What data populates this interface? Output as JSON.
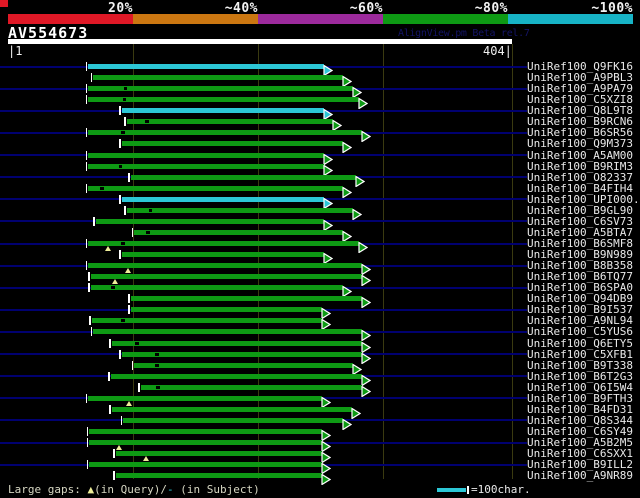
{
  "header": {
    "query_name": "AV554673",
    "watermark": "AlignView.pm Beta rel.7",
    "identity_scale": [
      {
        "label": "20%",
        "color": "#df1826"
      },
      {
        "label": "~40%",
        "color": "#cc7711"
      },
      {
        "label": "~60%",
        "color": "#9c2a9c"
      },
      {
        "label": "~80%",
        "color": "#0e9a14"
      },
      {
        "label": "~100%",
        "color": "#17b3c6"
      }
    ]
  },
  "ruler": {
    "start_label": "|1",
    "end_label": "404|",
    "start": 1,
    "end": 404,
    "ticks": [
      101,
      201,
      301,
      404
    ]
  },
  "legend": {
    "large_gaps_prefix": "Large gaps: ",
    "query_gap_symbol": "▲",
    "query_gap_text": "(in Query)/",
    "subject_gap_symbol": "-",
    "subject_gap_text": " (in Subject)",
    "swatch_label": "=100char."
  },
  "colors": {
    "background": "#000000",
    "bar_green": "#0e9a14",
    "bar_cyan": "#2cc7d6",
    "guide_navy": "#000070",
    "gridline_olive": "#3a3a10",
    "corner_red": "#df1826",
    "gap_yellow": "#eeee99",
    "label_text": "#e9e9e9"
  },
  "alignment": {
    "rows": [
      {
        "label": "UniRef100_Q9FK16",
        "color": "cyan",
        "start": 65,
        "end": 254,
        "sgaps": [],
        "qgaps": []
      },
      {
        "label": "UniRef100_A9PBL3",
        "color": "green",
        "start": 69,
        "end": 269,
        "sgaps": [],
        "qgaps": []
      },
      {
        "label": "UniRef100_A9PA79",
        "color": "green",
        "start": 65,
        "end": 277,
        "sgaps": [
          95
        ],
        "qgaps": []
      },
      {
        "label": "UniRef100_C5XZI8",
        "color": "green",
        "start": 65,
        "end": 282,
        "sgaps": [
          94
        ],
        "qgaps": []
      },
      {
        "label": "UniRef100_Q8L9T8",
        "color": "cyan",
        "start": 92,
        "end": 254,
        "sgaps": [],
        "qgaps": []
      },
      {
        "label": "UniRef100_B9RCN6",
        "color": "green",
        "start": 96,
        "end": 261,
        "sgaps": [
          112
        ],
        "qgaps": []
      },
      {
        "label": "UniRef100_B6SR56",
        "color": "green",
        "start": 65,
        "end": 284,
        "sgaps": [
          93
        ],
        "qgaps": []
      },
      {
        "label": "UniRef100_Q9M373",
        "color": "green",
        "start": 92,
        "end": 269,
        "sgaps": [],
        "qgaps": []
      },
      {
        "label": "UniRef100_A5AM00",
        "color": "green",
        "start": 65,
        "end": 254,
        "sgaps": [],
        "qgaps": []
      },
      {
        "label": "UniRef100_B9RIM3",
        "color": "green",
        "start": 65,
        "end": 254,
        "sgaps": [
          91
        ],
        "qgaps": []
      },
      {
        "label": "UniRef100_O82337",
        "color": "green",
        "start": 99,
        "end": 279,
        "sgaps": [],
        "qgaps": []
      },
      {
        "label": "UniRef100_B4FIH4",
        "color": "green",
        "start": 65,
        "end": 269,
        "sgaps": [
          76
        ],
        "qgaps": []
      },
      {
        "label": "UniRef100_UPI000..",
        "color": "cyan",
        "start": 92,
        "end": 254,
        "sgaps": [],
        "qgaps": []
      },
      {
        "label": "UniRef100_B9GL90",
        "color": "green",
        "start": 96,
        "end": 277,
        "sgaps": [
          115
        ],
        "qgaps": []
      },
      {
        "label": "UniRef100_C6SV73",
        "color": "green",
        "start": 71,
        "end": 254,
        "sgaps": [],
        "qgaps": []
      },
      {
        "label": "UniRef100_A5BTA7",
        "color": "green",
        "start": 102,
        "end": 269,
        "sgaps": [
          113
        ],
        "qgaps": []
      },
      {
        "label": "UniRef100_B6SMF8",
        "color": "green",
        "start": 65,
        "end": 282,
        "sgaps": [
          93
        ],
        "qgaps": [
          81
        ]
      },
      {
        "label": "UniRef100_B9N989",
        "color": "green",
        "start": 92,
        "end": 254,
        "sgaps": [],
        "qgaps": []
      },
      {
        "label": "UniRef100_B8B358",
        "color": "green",
        "start": 65,
        "end": 284,
        "sgaps": [],
        "qgaps": [
          97
        ]
      },
      {
        "label": "UniRef100_B6TQ77",
        "color": "green",
        "start": 67,
        "end": 284,
        "sgaps": [],
        "qgaps": [
          87
        ]
      },
      {
        "label": "UniRef100_B6SPA0",
        "color": "green",
        "start": 67,
        "end": 269,
        "sgaps": [
          85
        ],
        "qgaps": []
      },
      {
        "label": "UniRef100_Q94DB9",
        "color": "green",
        "start": 99,
        "end": 284,
        "sgaps": [],
        "qgaps": []
      },
      {
        "label": "UniRef100_B9I537",
        "color": "green",
        "start": 99,
        "end": 252,
        "sgaps": [],
        "qgaps": []
      },
      {
        "label": "UniRef100_A9NL94",
        "color": "green",
        "start": 68,
        "end": 252,
        "sgaps": [
          93
        ],
        "qgaps": []
      },
      {
        "label": "UniRef100_C5YUS6",
        "color": "green",
        "start": 69,
        "end": 284,
        "sgaps": [],
        "qgaps": []
      },
      {
        "label": "UniRef100_Q6ETY5",
        "color": "green",
        "start": 84,
        "end": 284,
        "sgaps": [
          104
        ],
        "qgaps": []
      },
      {
        "label": "UniRef100_C5XFB1",
        "color": "green",
        "start": 92,
        "end": 284,
        "sgaps": [
          120
        ],
        "qgaps": []
      },
      {
        "label": "UniRef100_B9T338",
        "color": "green",
        "start": 102,
        "end": 277,
        "sgaps": [
          120
        ],
        "qgaps": []
      },
      {
        "label": "UniRef100_B6T2G3",
        "color": "green",
        "start": 83,
        "end": 284,
        "sgaps": [],
        "qgaps": []
      },
      {
        "label": "UniRef100_Q6I5W4",
        "color": "green",
        "start": 107,
        "end": 284,
        "sgaps": [
          121
        ],
        "qgaps": []
      },
      {
        "label": "UniRef100_B9FTH3",
        "color": "green",
        "start": 65,
        "end": 252,
        "sgaps": [],
        "qgaps": [
          98
        ]
      },
      {
        "label": "UniRef100_B4FD31",
        "color": "green",
        "start": 84,
        "end": 276,
        "sgaps": [],
        "qgaps": []
      },
      {
        "label": "UniRef100_Q8S344",
        "color": "green",
        "start": 93,
        "end": 269,
        "sgaps": [],
        "qgaps": []
      },
      {
        "label": "UniRef100_C6SY49",
        "color": "green",
        "start": 66,
        "end": 252,
        "sgaps": [],
        "qgaps": []
      },
      {
        "label": "UniRef100_A5B2M5",
        "color": "green",
        "start": 66,
        "end": 252,
        "sgaps": [],
        "qgaps": [
          90
        ]
      },
      {
        "label": "UniRef100_C6SXX1",
        "color": "green",
        "start": 87,
        "end": 252,
        "sgaps": [],
        "qgaps": [
          112
        ]
      },
      {
        "label": "UniRef100_B9ILL2",
        "color": "green",
        "start": 66,
        "end": 252,
        "sgaps": [],
        "qgaps": []
      },
      {
        "label": "UniRef100_A9NR89",
        "color": "green",
        "start": 87,
        "end": 252,
        "sgaps": [],
        "qgaps": []
      }
    ]
  }
}
